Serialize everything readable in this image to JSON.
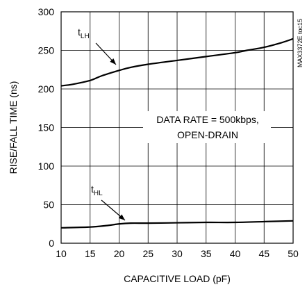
{
  "chart_data": {
    "type": "line",
    "xlabel": "CAPACITIVE LOAD (pF)",
    "ylabel": "RISE/FALL TIME (ns)",
    "xlim": [
      10,
      50
    ],
    "ylim": [
      0,
      300
    ],
    "x_ticks": [
      "10",
      "15",
      "20",
      "25",
      "30",
      "35",
      "40",
      "45",
      "50"
    ],
    "y_ticks": [
      "0",
      "50",
      "100",
      "150",
      "200",
      "250",
      "300"
    ],
    "grid": true,
    "annotation_lines": [
      "DATA RATE = 500kbps,",
      "OPEN-DRAIN"
    ],
    "figure_code": "MAX3372E toc15",
    "series": [
      {
        "name": "tLH",
        "label_main": "t",
        "label_sub": "LH",
        "x": [
          10,
          12,
          15,
          17,
          20,
          22,
          25,
          30,
          35,
          40,
          42,
          45,
          48,
          50
        ],
        "y": [
          204,
          206,
          211,
          217,
          224,
          228,
          232,
          237,
          242,
          247,
          250,
          254,
          260,
          265
        ]
      },
      {
        "name": "tHL",
        "label_main": "t",
        "label_sub": "HL",
        "x": [
          10,
          15,
          18,
          20,
          22,
          25,
          30,
          35,
          40,
          45,
          50
        ],
        "y": [
          20,
          21,
          23,
          25,
          26,
          26,
          26.5,
          27,
          27,
          28,
          29
        ]
      }
    ]
  }
}
